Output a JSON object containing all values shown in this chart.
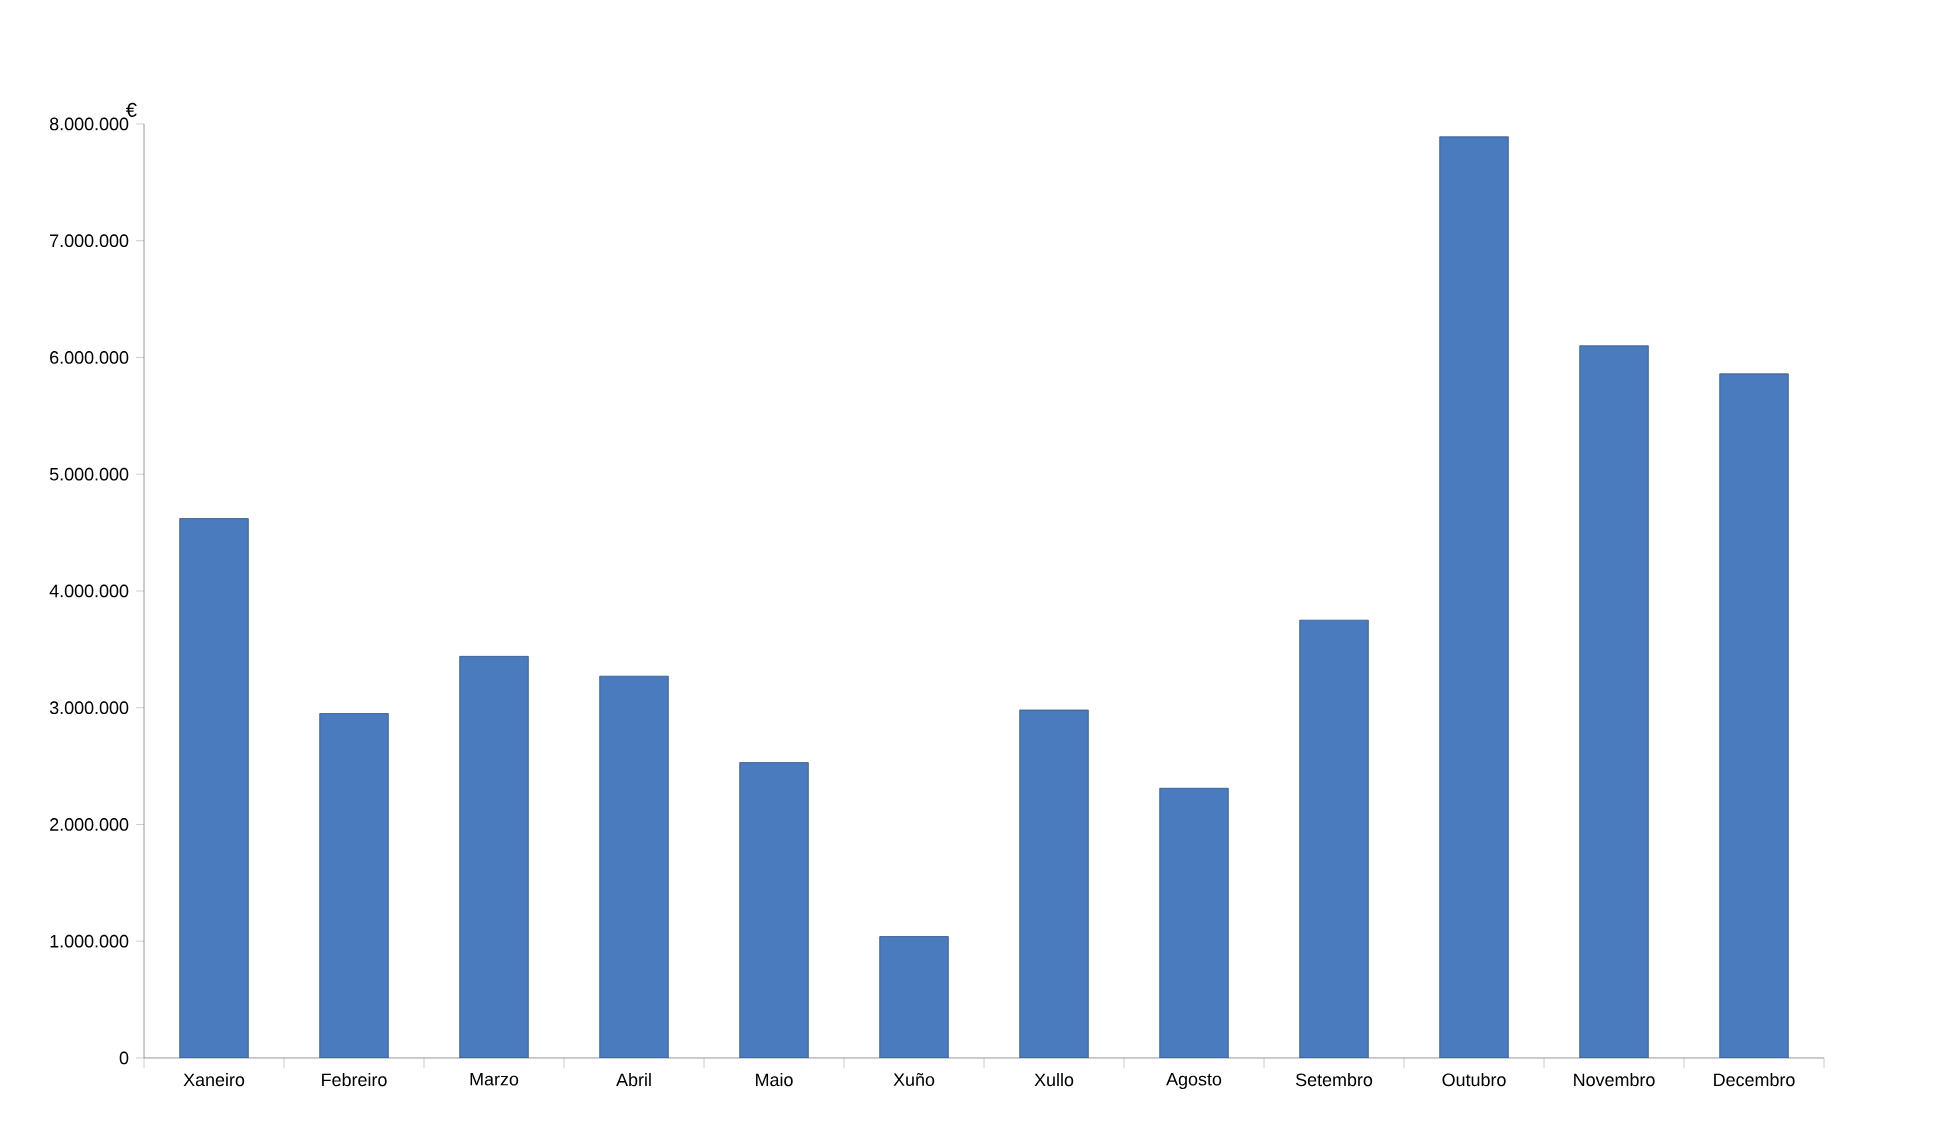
{
  "chart_data": {
    "type": "bar",
    "ylabel": "€",
    "categories": [
      "Xaneiro",
      "Febreiro",
      "Marzo",
      "Abril",
      "Maio",
      "Xuño",
      "Xullo",
      "Agosto",
      "Setembro",
      "Outubro",
      "Novembro",
      "Decembro"
    ],
    "values": [
      4620000,
      2950000,
      3440000,
      3270000,
      2530000,
      1040000,
      2980000,
      2310000,
      3750000,
      7890000,
      6100000,
      5860000
    ],
    "color": "#4a7bbf",
    "ylim": [
      0,
      8000000
    ],
    "yticks": [
      {
        "value": 0,
        "label": "0"
      },
      {
        "value": 1000000,
        "label": "1.000.000"
      },
      {
        "value": 2000000,
        "label": "2.000.000"
      },
      {
        "value": 3000000,
        "label": "3.000.000"
      },
      {
        "value": 4000000,
        "label": "4.000.000"
      },
      {
        "value": 5000000,
        "label": "5.000.000"
      },
      {
        "value": 6000000,
        "label": "6.000.000"
      },
      {
        "value": 7000000,
        "label": "7.000.000"
      },
      {
        "value": 8000000,
        "label": "8.000.000"
      }
    ],
    "grid": false
  }
}
